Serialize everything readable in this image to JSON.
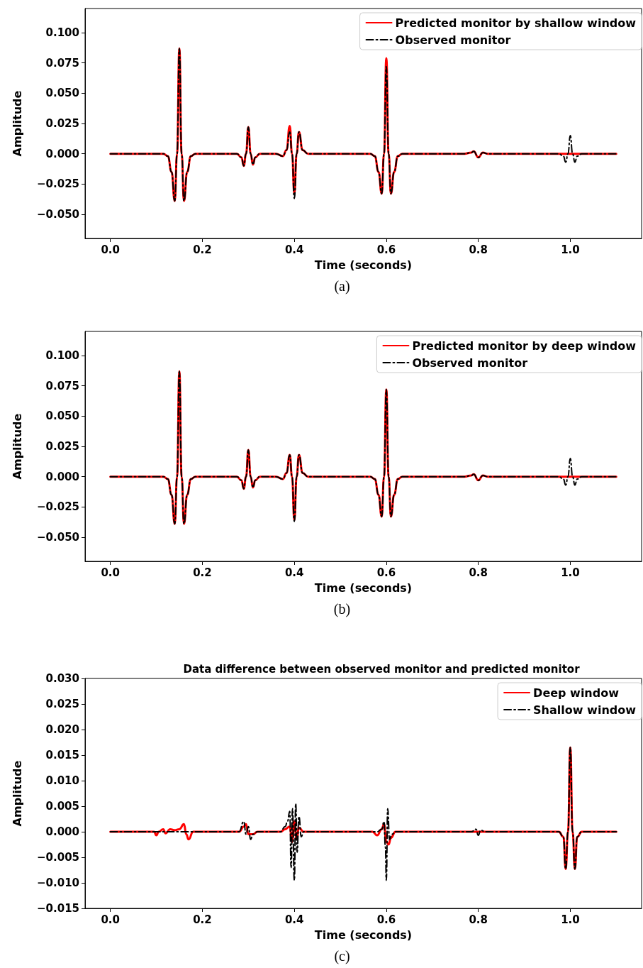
{
  "chart_data": [
    {
      "type": "line",
      "xlabel": "Time (seconds)",
      "ylabel": "Amplitude",
      "annotations": [
        "(a)"
      ],
      "legend": "top right",
      "grid": false,
      "marker": "none",
      "xlim": [
        -0.055,
        1.155
      ],
      "ylim": [
        -0.07,
        0.12
      ],
      "xticks": [
        {
          "value": 0,
          "label": "0.0"
        },
        {
          "value": 0.2,
          "label": "0.2"
        },
        {
          "value": 0.4,
          "label": "0.4"
        },
        {
          "value": 0.6,
          "label": "0.6"
        },
        {
          "value": 0.8,
          "label": "0.8"
        },
        {
          "value": 1,
          "label": "1.0"
        }
      ],
      "yticks": [
        {
          "value": -0.05,
          "label": "−0.050"
        },
        {
          "value": -0.025,
          "label": "−0.025"
        },
        {
          "value": 0,
          "label": "0.000"
        },
        {
          "value": 0.025,
          "label": "0.025"
        },
        {
          "value": 0.05,
          "label": "0.050"
        },
        {
          "value": 0.075,
          "label": "0.075"
        },
        {
          "value": 0.1,
          "label": "0.100"
        }
      ],
      "series": [
        {
          "name": "Predicted monitor by shallow window",
          "color": "#ff0000",
          "line_style": "solid",
          "x": [
            0,
            0.115,
            0.125,
            0.133,
            0.14,
            0.145,
            0.15,
            0.155,
            0.16,
            0.167,
            0.175,
            0.185,
            0.275,
            0.285,
            0.29,
            0.295,
            0.3,
            0.305,
            0.31,
            0.315,
            0.325,
            0.36,
            0.375,
            0.383,
            0.39,
            0.395,
            0.4,
            0.405,
            0.41,
            0.418,
            0.43,
            0.565,
            0.575,
            0.583,
            0.59,
            0.595,
            0.6,
            0.605,
            0.61,
            0.617,
            0.625,
            0.635,
            0.77,
            0.785,
            0.79,
            0.8,
            0.81,
            0.82,
            1.1
          ],
          "values": [
            0,
            0,
            -0.002,
            -0.015,
            -0.039,
            0,
            0.087,
            0,
            -0.039,
            -0.015,
            -0.002,
            0,
            0,
            -0.003,
            -0.01,
            0,
            0.022,
            0,
            -0.009,
            -0.003,
            0,
            0,
            -0.002,
            0.003,
            0.023,
            0,
            -0.033,
            0,
            0.018,
            0.003,
            0,
            0,
            -0.002,
            -0.015,
            -0.033,
            0,
            0.079,
            0,
            -0.033,
            -0.015,
            -0.002,
            0,
            0,
            0.001,
            0.002,
            -0.003,
            0.001,
            0,
            0
          ]
        },
        {
          "name": "Observed monitor",
          "color": "#000000",
          "line_style": "dashdot",
          "x": [
            0,
            0.115,
            0.125,
            0.133,
            0.14,
            0.145,
            0.15,
            0.155,
            0.16,
            0.167,
            0.175,
            0.185,
            0.275,
            0.285,
            0.29,
            0.295,
            0.3,
            0.305,
            0.31,
            0.315,
            0.325,
            0.36,
            0.375,
            0.383,
            0.39,
            0.395,
            0.4,
            0.405,
            0.41,
            0.418,
            0.43,
            0.565,
            0.575,
            0.583,
            0.59,
            0.595,
            0.6,
            0.605,
            0.61,
            0.617,
            0.625,
            0.635,
            0.77,
            0.785,
            0.79,
            0.8,
            0.81,
            0.82,
            0.975,
            0.985,
            0.99,
            0.995,
            1,
            1.005,
            1.01,
            1.015,
            1.025,
            1.1
          ],
          "values": [
            0,
            0,
            -0.002,
            -0.015,
            -0.039,
            0,
            0.087,
            0,
            -0.039,
            -0.015,
            -0.002,
            0,
            0,
            -0.003,
            -0.01,
            0,
            0.022,
            0,
            -0.009,
            -0.003,
            0,
            0,
            -0.002,
            0.003,
            0.018,
            0,
            -0.037,
            0,
            0.018,
            0.003,
            0,
            0,
            -0.002,
            -0.015,
            -0.033,
            0,
            0.072,
            0,
            -0.033,
            -0.015,
            -0.002,
            0,
            0,
            0.001,
            0.002,
            -0.003,
            0.001,
            0,
            0,
            -0.002,
            -0.007,
            0,
            0.015,
            0,
            -0.007,
            -0.002,
            0,
            0
          ]
        }
      ]
    },
    {
      "type": "line",
      "xlabel": "Time (seconds)",
      "ylabel": "Amplitude",
      "annotations": [
        "(b)"
      ],
      "legend": "top right",
      "grid": false,
      "marker": "none",
      "xlim": [
        -0.055,
        1.155
      ],
      "ylim": [
        -0.07,
        0.12
      ],
      "xticks": [
        {
          "value": 0,
          "label": "0.0"
        },
        {
          "value": 0.2,
          "label": "0.2"
        },
        {
          "value": 0.4,
          "label": "0.4"
        },
        {
          "value": 0.6,
          "label": "0.6"
        },
        {
          "value": 0.8,
          "label": "0.8"
        },
        {
          "value": 1,
          "label": "1.0"
        }
      ],
      "yticks": [
        {
          "value": -0.05,
          "label": "−0.050"
        },
        {
          "value": -0.025,
          "label": "−0.025"
        },
        {
          "value": 0,
          "label": "0.000"
        },
        {
          "value": 0.025,
          "label": "0.025"
        },
        {
          "value": 0.05,
          "label": "0.050"
        },
        {
          "value": 0.075,
          "label": "0.075"
        },
        {
          "value": 0.1,
          "label": "0.100"
        }
      ],
      "series": [
        {
          "name": "Predicted monitor by deep window",
          "color": "#ff0000",
          "line_style": "solid",
          "x": [
            0,
            0.115,
            0.125,
            0.133,
            0.14,
            0.145,
            0.15,
            0.155,
            0.16,
            0.167,
            0.175,
            0.185,
            0.275,
            0.285,
            0.29,
            0.295,
            0.3,
            0.305,
            0.31,
            0.315,
            0.325,
            0.36,
            0.375,
            0.383,
            0.39,
            0.395,
            0.4,
            0.405,
            0.41,
            0.418,
            0.43,
            0.565,
            0.575,
            0.583,
            0.59,
            0.595,
            0.6,
            0.605,
            0.61,
            0.617,
            0.625,
            0.635,
            0.77,
            0.785,
            0.79,
            0.8,
            0.81,
            0.82,
            1.1
          ],
          "values": [
            0,
            0,
            -0.002,
            -0.015,
            -0.039,
            0,
            0.087,
            0,
            -0.039,
            -0.015,
            -0.002,
            0,
            0,
            -0.003,
            -0.01,
            0,
            0.022,
            0,
            -0.009,
            -0.003,
            0,
            0,
            -0.002,
            0.003,
            0.018,
            0,
            -0.036,
            0,
            0.018,
            0.003,
            0,
            0,
            -0.002,
            -0.015,
            -0.033,
            0,
            0.072,
            0,
            -0.033,
            -0.015,
            -0.002,
            0,
            0,
            0.001,
            0.002,
            -0.003,
            0.001,
            0,
            0
          ]
        },
        {
          "name": "Observed monitor",
          "color": "#000000",
          "line_style": "dashdot",
          "x": [
            0,
            0.115,
            0.125,
            0.133,
            0.14,
            0.145,
            0.15,
            0.155,
            0.16,
            0.167,
            0.175,
            0.185,
            0.275,
            0.285,
            0.29,
            0.295,
            0.3,
            0.305,
            0.31,
            0.315,
            0.325,
            0.36,
            0.375,
            0.383,
            0.39,
            0.395,
            0.4,
            0.405,
            0.41,
            0.418,
            0.43,
            0.565,
            0.575,
            0.583,
            0.59,
            0.595,
            0.6,
            0.605,
            0.61,
            0.617,
            0.625,
            0.635,
            0.77,
            0.785,
            0.79,
            0.8,
            0.81,
            0.82,
            0.975,
            0.985,
            0.99,
            0.995,
            1,
            1.005,
            1.01,
            1.015,
            1.025,
            1.1
          ],
          "values": [
            0,
            0,
            -0.002,
            -0.015,
            -0.039,
            0,
            0.087,
            0,
            -0.039,
            -0.015,
            -0.002,
            0,
            0,
            -0.003,
            -0.01,
            0,
            0.022,
            0,
            -0.009,
            -0.003,
            0,
            0,
            -0.002,
            0.003,
            0.018,
            0,
            -0.037,
            0,
            0.018,
            0.003,
            0,
            0,
            -0.002,
            -0.015,
            -0.033,
            0,
            0.072,
            0,
            -0.033,
            -0.015,
            -0.002,
            0,
            0,
            0.001,
            0.002,
            -0.003,
            0.001,
            0,
            0,
            -0.002,
            -0.007,
            0,
            0.015,
            0,
            -0.007,
            -0.002,
            0,
            0
          ]
        }
      ]
    },
    {
      "type": "line",
      "title": "Data difference between observed monitor and predicted monitor",
      "xlabel": "Time (seconds)",
      "ylabel": "Amplitude",
      "annotations": [
        "(c)"
      ],
      "legend": "top right",
      "grid": false,
      "marker": "none",
      "xlim": [
        -0.055,
        1.155
      ],
      "ylim": [
        -0.015,
        0.03
      ],
      "xticks": [
        {
          "value": 0,
          "label": "0.0"
        },
        {
          "value": 0.2,
          "label": "0.2"
        },
        {
          "value": 0.4,
          "label": "0.4"
        },
        {
          "value": 0.6,
          "label": "0.6"
        },
        {
          "value": 0.8,
          "label": "0.8"
        },
        {
          "value": 1,
          "label": "1.0"
        }
      ],
      "yticks": [
        {
          "value": -0.015,
          "label": "−0.015"
        },
        {
          "value": -0.01,
          "label": "−0.010"
        },
        {
          "value": -0.005,
          "label": "−0.005"
        },
        {
          "value": 0,
          "label": "0.000"
        },
        {
          "value": 0.005,
          "label": "0.005"
        },
        {
          "value": 0.01,
          "label": "0.010"
        },
        {
          "value": 0.015,
          "label": "0.015"
        },
        {
          "value": 0.02,
          "label": "0.020"
        },
        {
          "value": 0.025,
          "label": "0.025"
        },
        {
          "value": 0.03,
          "label": "0.030"
        }
      ],
      "series": [
        {
          "name": "Deep window",
          "color": "#ff0000",
          "line_style": "solid",
          "x": [
            0,
            0.095,
            0.1,
            0.105,
            0.115,
            0.12,
            0.13,
            0.14,
            0.15,
            0.16,
            0.165,
            0.17,
            0.18,
            0.28,
            0.29,
            0.295,
            0.3,
            0.31,
            0.32,
            0.37,
            0.38,
            0.39,
            0.395,
            0.4,
            0.405,
            0.41,
            0.42,
            0.57,
            0.58,
            0.59,
            0.595,
            0.6,
            0.605,
            0.61,
            0.62,
            0.975,
            0.985,
            0.99,
            0.995,
            1,
            1.005,
            1.01,
            1.015,
            1.025,
            1.1
          ],
          "values": [
            0,
            0,
            -0.0007,
            0,
            0.0005,
            -0.0003,
            0.0005,
            0.0003,
            0.0005,
            0.0015,
            -0.0005,
            -0.0015,
            0,
            0,
            0.001,
            0.0015,
            -0.0005,
            -0.0005,
            0,
            0,
            0.0005,
            0.001,
            -0.002,
            0.002,
            -0.0015,
            0.0008,
            0,
            0,
            -0.0007,
            0.0005,
            0.0015,
            -0.002,
            -0.0025,
            -0.0012,
            0,
            0,
            -0.001,
            -0.0073,
            0,
            0.0165,
            0,
            -0.0073,
            -0.001,
            0,
            0
          ]
        },
        {
          "name": "Shallow window",
          "color": "#000000",
          "line_style": "dashdot",
          "x": [
            0,
            0.28,
            0.29,
            0.295,
            0.3,
            0.305,
            0.31,
            0.32,
            0.37,
            0.38,
            0.385,
            0.39,
            0.393,
            0.396,
            0.4,
            0.403,
            0.406,
            0.41,
            0.415,
            0.42,
            0.58,
            0.59,
            0.595,
            0.598,
            0.6,
            0.603,
            0.607,
            0.612,
            0.62,
            0.785,
            0.795,
            0.8,
            0.805,
            0.815,
            0.975,
            0.985,
            0.99,
            0.995,
            1,
            1.005,
            1.01,
            1.015,
            1.025,
            1.1
          ],
          "values": [
            0,
            0,
            0.002,
            -0.0005,
            0.001,
            -0.0015,
            -0.0005,
            0,
            0,
            0.001,
            0.002,
            0.004,
            -0.007,
            0.0045,
            -0.0095,
            0.0055,
            -0.004,
            0.003,
            -0.001,
            0,
            0,
            0.0005,
            0.002,
            -0.003,
            -0.0095,
            0.0045,
            -0.0015,
            -0.0005,
            0,
            0,
            0.0005,
            -0.0007,
            0.0003,
            0,
            0,
            -0.001,
            -0.0073,
            0,
            0.0165,
            0,
            -0.0073,
            -0.001,
            0,
            0
          ]
        }
      ]
    }
  ]
}
